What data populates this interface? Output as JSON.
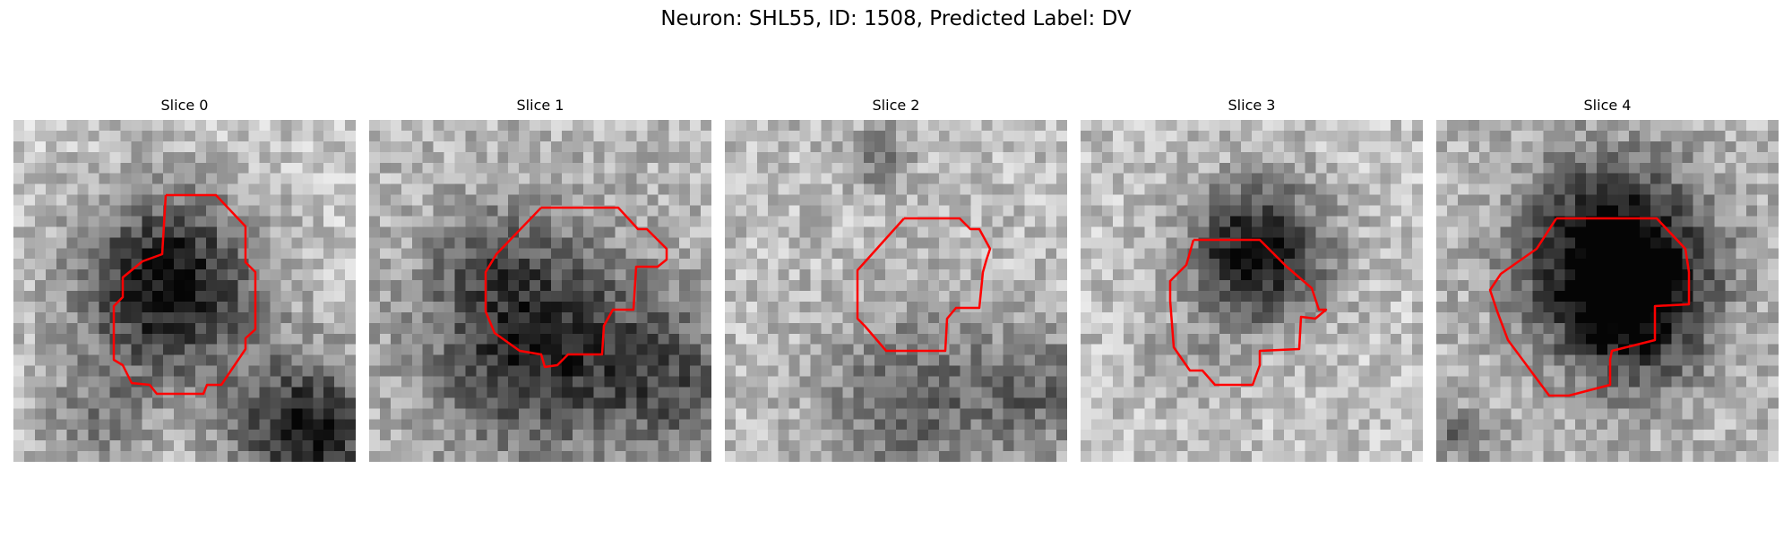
{
  "figure": {
    "title": "Neuron: SHL55, ID: 1508, Predicted Label: DV",
    "contour_color": "#ff0000",
    "colormap": "gray"
  },
  "panels": [
    {
      "title": "Slice 0"
    },
    {
      "title": "Slice 1"
    },
    {
      "title": "Slice 2"
    },
    {
      "title": "Slice 3"
    },
    {
      "title": "Slice 4"
    }
  ]
}
